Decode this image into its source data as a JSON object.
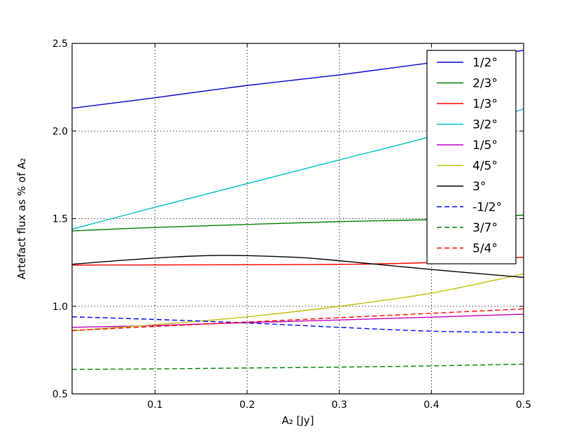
{
  "chart_data": {
    "type": "line",
    "xlabel": "A₂ [Jy]",
    "ylabel": "Artefact flux as % of A₂",
    "xlim": [
      0.01,
      0.5
    ],
    "ylim": [
      0.5,
      2.5
    ],
    "x_ticks": [
      0.1,
      0.2,
      0.3,
      0.4,
      0.5
    ],
    "x_tick_labels": [
      "0.1",
      "0.2",
      "0.3",
      "0.4",
      "0.5"
    ],
    "y_ticks": [
      0.5,
      1.0,
      1.5,
      2.0,
      2.5
    ],
    "y_tick_labels": [
      "0.5",
      "1.0",
      "1.5",
      "2.0",
      "2.5"
    ],
    "grid": true,
    "legend_position": "upper-right",
    "series": [
      {
        "name": "1/2°",
        "color": "#0000cc",
        "dash": "solid",
        "x": [
          0.01,
          0.1,
          0.2,
          0.3,
          0.4,
          0.5
        ],
        "y": [
          2.13,
          2.19,
          2.26,
          2.32,
          2.39,
          2.46
        ]
      },
      {
        "name": "2/3°",
        "color": "#008000",
        "dash": "solid",
        "x": [
          0.01,
          0.1,
          0.2,
          0.3,
          0.4,
          0.5
        ],
        "y": [
          1.43,
          1.45,
          1.467,
          1.483,
          1.495,
          1.52
        ]
      },
      {
        "name": "1/3°",
        "color": "#ff0000",
        "dash": "solid",
        "x": [
          0.01,
          0.1,
          0.2,
          0.3,
          0.4,
          0.5
        ],
        "y": [
          1.235,
          1.236,
          1.237,
          1.239,
          1.25,
          1.28
        ]
      },
      {
        "name": "3/2°",
        "color": "#00bfbf",
        "dash": "solid",
        "x": [
          0.01,
          0.1,
          0.2,
          0.3,
          0.4,
          0.5
        ],
        "y": [
          1.44,
          1.565,
          1.7,
          1.835,
          1.97,
          2.125
        ]
      },
      {
        "name": "1/5°",
        "color": "#bf00bf",
        "dash": "solid",
        "x": [
          0.01,
          0.1,
          0.2,
          0.3,
          0.4,
          0.5
        ],
        "y": [
          0.88,
          0.89,
          0.907,
          0.922,
          0.938,
          0.955
        ]
      },
      {
        "name": "4/5°",
        "color": "#bfbf00",
        "dash": "solid",
        "x": [
          0.01,
          0.1,
          0.2,
          0.3,
          0.4,
          0.5
        ],
        "y": [
          0.86,
          0.895,
          0.94,
          1.0,
          1.075,
          1.185
        ]
      },
      {
        "name": "3°",
        "color": "#000000",
        "dash": "solid",
        "x": [
          0.01,
          0.1,
          0.17,
          0.25,
          0.3,
          0.4,
          0.5
        ],
        "y": [
          1.24,
          1.275,
          1.29,
          1.28,
          1.26,
          1.21,
          1.165
        ]
      },
      {
        "name": "-1/2°",
        "color": "#0000ff",
        "dash": "dashed",
        "x": [
          0.01,
          0.1,
          0.2,
          0.3,
          0.4,
          0.5
        ],
        "y": [
          0.94,
          0.925,
          0.905,
          0.88,
          0.858,
          0.85
        ]
      },
      {
        "name": "3/7°",
        "color": "#008000",
        "dash": "dashed",
        "x": [
          0.01,
          0.1,
          0.2,
          0.3,
          0.4,
          0.5
        ],
        "y": [
          0.64,
          0.643,
          0.648,
          0.653,
          0.66,
          0.67
        ]
      },
      {
        "name": "5/4°",
        "color": "#ff0000",
        "dash": "dashed",
        "x": [
          0.01,
          0.1,
          0.2,
          0.3,
          0.4,
          0.5
        ],
        "y": [
          0.862,
          0.885,
          0.91,
          0.935,
          0.96,
          0.985
        ]
      }
    ]
  }
}
